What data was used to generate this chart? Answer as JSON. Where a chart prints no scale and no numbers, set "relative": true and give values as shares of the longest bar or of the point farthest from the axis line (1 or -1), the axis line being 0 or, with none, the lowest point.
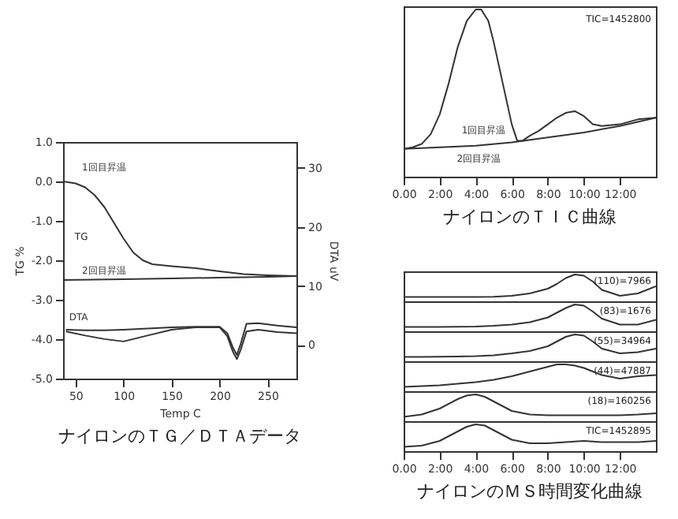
{
  "chart_data": [
    {
      "type": "line",
      "title": "ナイロンのＴＧ／ＤＴＡデータ",
      "xlabel": "Temp C",
      "ylabel": "TG %",
      "y2label": "DTA uV",
      "xlim": [
        37,
        280
      ],
      "xticks": [
        50,
        100,
        150,
        200,
        250
      ],
      "ylim": [
        -5,
        1
      ],
      "yticks": [
        {
          "value": -5,
          "label": "-5.0"
        },
        {
          "value": -4,
          "label": "-4.0"
        },
        {
          "value": -3,
          "label": "-3.0"
        },
        {
          "value": -2,
          "label": "-2.0"
        },
        {
          "value": -1,
          "label": "-1.0"
        },
        {
          "value": 0,
          "label": "0.0"
        },
        {
          "value": 1,
          "label": "1.0"
        }
      ],
      "y2lim": [
        -5.7,
        34.4
      ],
      "y2ticks": [
        0,
        10,
        20,
        30
      ],
      "series": [
        {
          "name": "1回目昇温",
          "color": "#333333",
          "x": [
            37,
            50,
            60,
            70,
            80,
            90,
            100,
            110,
            120,
            130,
            150,
            175,
            200,
            225,
            250,
            280
          ],
          "values": [
            0.0,
            -0.05,
            -0.15,
            -0.35,
            -0.65,
            -1.05,
            -1.45,
            -1.8,
            -2.0,
            -2.1,
            -2.15,
            -2.2,
            -2.28,
            -2.35,
            -2.38,
            -2.4
          ]
        },
        {
          "name": "2回目昇温",
          "color": "#333333",
          "x": [
            37,
            100,
            150,
            200,
            250,
            280
          ],
          "values": [
            -2.5,
            -2.48,
            -2.46,
            -2.44,
            -2.42,
            -2.4
          ]
        },
        {
          "name": "DTA",
          "color": "#333333",
          "axis": "y2",
          "x": [
            40,
            60,
            80,
            100,
            125,
            150,
            175,
            200,
            208,
            214,
            218,
            222,
            228,
            240,
            260,
            280
          ],
          "values": [
            2.3,
            1.6,
            1.0,
            0.6,
            1.6,
            2.6,
            3.0,
            3.0,
            1.5,
            -1.2,
            -2.4,
            -0.8,
            2.3,
            2.6,
            2.2,
            2.0
          ]
        },
        {
          "color": "#333333",
          "axis": "y2",
          "x": [
            40,
            60,
            80,
            100,
            125,
            150,
            175,
            200,
            208,
            214,
            218,
            222,
            228,
            240,
            260,
            280
          ],
          "values": [
            2.6,
            2.5,
            2.5,
            2.6,
            2.8,
            3.0,
            3.1,
            3.1,
            2.0,
            -0.5,
            -1.7,
            0.2,
            3.6,
            3.7,
            3.3,
            3.0
          ]
        }
      ],
      "annotations": [
        "TG"
      ]
    },
    {
      "type": "line",
      "title": "ナイロンのＴＩＣ曲線",
      "relative": true,
      "xlim": [
        0,
        14
      ],
      "xticks": [
        {
          "value": 0,
          "label": "0.00"
        },
        {
          "value": 2,
          "label": "2:00"
        },
        {
          "value": 4,
          "label": "4:00"
        },
        {
          "value": 6,
          "label": "6:00"
        },
        {
          "value": 8,
          "label": "8:00"
        },
        {
          "value": 10,
          "label": "10:00"
        },
        {
          "value": 12,
          "label": "12:00"
        }
      ],
      "series": [
        {
          "name": "1回目昇温",
          "color": "#333333",
          "x": [
            0,
            0.5,
            1,
            1.5,
            2,
            2.5,
            3,
            3.5,
            4,
            4.3,
            4.7,
            5,
            5.5,
            6,
            6.3,
            6.6,
            7,
            7.5,
            8,
            8.5,
            9,
            9.5,
            10,
            10.5,
            11,
            12,
            13,
            14
          ],
          "values": [
            0.15,
            0.16,
            0.18,
            0.24,
            0.36,
            0.55,
            0.77,
            0.93,
            1.0,
            1.0,
            0.93,
            0.8,
            0.55,
            0.3,
            0.2,
            0.2,
            0.23,
            0.26,
            0.3,
            0.34,
            0.37,
            0.38,
            0.35,
            0.3,
            0.29,
            0.3,
            0.33,
            0.34
          ]
        },
        {
          "name": "2回目昇温",
          "color": "#333333",
          "x": [
            0,
            2,
            4,
            6,
            8,
            10,
            12,
            14
          ],
          "values": [
            0.15,
            0.16,
            0.17,
            0.19,
            0.22,
            0.25,
            0.29,
            0.34
          ]
        }
      ],
      "annotations": [
        "TIC=1452800"
      ]
    },
    {
      "type": "line",
      "relative": true,
      "tick_labels": false,
      "xlim": [
        0,
        14
      ],
      "x": [
        0,
        1,
        2,
        3,
        4,
        5,
        6,
        7,
        8,
        8.5,
        9,
        9.5,
        10,
        10.5,
        11,
        12,
        13,
        14
      ],
      "series": [
        {
          "color": "#333333",
          "values": [
            0.05,
            0.05,
            0.05,
            0.05,
            0.05,
            0.06,
            0.1,
            0.2,
            0.4,
            0.6,
            0.85,
            1.0,
            0.95,
            0.7,
            0.35,
            0.1,
            0.2,
            0.5
          ]
        }
      ],
      "annotations": [
        "(110)=7966"
      ]
    },
    {
      "type": "line",
      "relative": true,
      "tick_labels": false,
      "xlim": [
        0,
        14
      ],
      "x": [
        0,
        1,
        2,
        3,
        4,
        5,
        6,
        7,
        8,
        8.5,
        9,
        9.5,
        10,
        10.5,
        11,
        12,
        13,
        14
      ],
      "series": [
        {
          "color": "#333333",
          "values": [
            0.05,
            0.05,
            0.05,
            0.06,
            0.07,
            0.1,
            0.15,
            0.25,
            0.45,
            0.65,
            0.85,
            1.0,
            0.95,
            0.7,
            0.4,
            0.15,
            0.15,
            0.35
          ]
        }
      ],
      "annotations": [
        "(83)=1676"
      ]
    },
    {
      "type": "line",
      "relative": true,
      "tick_labels": false,
      "xlim": [
        0,
        14
      ],
      "x": [
        0,
        1,
        2,
        3,
        4,
        5,
        6,
        7,
        8,
        8.5,
        9,
        9.5,
        10,
        10.5,
        11,
        12,
        13,
        14
      ],
      "series": [
        {
          "color": "#333333",
          "values": [
            0.05,
            0.05,
            0.06,
            0.07,
            0.08,
            0.12,
            0.2,
            0.3,
            0.5,
            0.7,
            0.9,
            1.0,
            0.95,
            0.7,
            0.4,
            0.2,
            0.25,
            0.4
          ]
        }
      ],
      "annotations": [
        "(55)=34964"
      ]
    },
    {
      "type": "line",
      "relative": true,
      "tick_labels": false,
      "xlim": [
        0,
        14
      ],
      "x": [
        0,
        1,
        2,
        3,
        4,
        5,
        6,
        7,
        8,
        8.5,
        9,
        9.5,
        10,
        10.5,
        11,
        12,
        13,
        14
      ],
      "series": [
        {
          "color": "#333333",
          "values": [
            0.05,
            0.08,
            0.12,
            0.18,
            0.25,
            0.35,
            0.5,
            0.7,
            0.9,
            1.0,
            1.0,
            0.95,
            0.85,
            0.7,
            0.55,
            0.4,
            0.5,
            0.55
          ]
        }
      ],
      "annotations": [
        "(44)=47887"
      ]
    },
    {
      "type": "line",
      "relative": true,
      "tick_labels": false,
      "xlim": [
        0,
        14
      ],
      "x": [
        0,
        1,
        2,
        3,
        3.5,
        4,
        4.5,
        5,
        6,
        7,
        8,
        9,
        10,
        11,
        12,
        13,
        14
      ],
      "series": [
        {
          "color": "#333333",
          "values": [
            0.05,
            0.15,
            0.4,
            0.8,
            0.95,
            1.0,
            0.9,
            0.7,
            0.3,
            0.15,
            0.12,
            0.12,
            0.12,
            0.12,
            0.12,
            0.15,
            0.2
          ]
        }
      ],
      "annotations": [
        "(18)=160256"
      ]
    },
    {
      "type": "line",
      "title": "ナイロンのＭＳ時間変化曲線",
      "relative": true,
      "tick_labels": "x",
      "xlim": [
        0,
        14
      ],
      "xticks": [
        {
          "value": 0,
          "label": "0.00"
        },
        {
          "value": 2,
          "label": "2:00"
        },
        {
          "value": 4,
          "label": "4:00"
        },
        {
          "value": 6,
          "label": "6:00"
        },
        {
          "value": 8,
          "label": "8:00"
        },
        {
          "value": 10,
          "label": "10:00"
        },
        {
          "value": 12,
          "label": "12:00"
        }
      ],
      "x": [
        0,
        1,
        2,
        3,
        3.5,
        4,
        4.5,
        5,
        6,
        7,
        8,
        9,
        10,
        11,
        12,
        13,
        14
      ],
      "series": [
        {
          "color": "#333333",
          "values": [
            0.05,
            0.1,
            0.3,
            0.7,
            0.9,
            1.0,
            0.95,
            0.75,
            0.35,
            0.2,
            0.2,
            0.25,
            0.3,
            0.25,
            0.25,
            0.25,
            0.3
          ]
        }
      ],
      "annotations": [
        "TIC=1452895"
      ]
    }
  ]
}
